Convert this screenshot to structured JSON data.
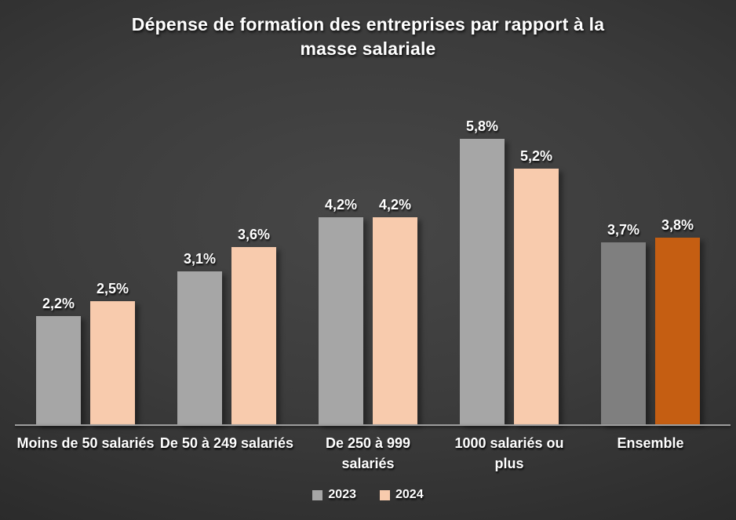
{
  "header": {
    "title_line1": "Dépense de formation des entreprises par rapport à la",
    "title_line2": "masse salariale"
  },
  "chart_data": {
    "type": "bar",
    "title": "Dépense de formation des entreprises par rapport à la masse salariale",
    "categories": [
      "Moins de 50 salariés",
      "De 50 à 249 salariés",
      "De 250 à 999 salariés",
      "1000 salariés ou plus",
      "Ensemble"
    ],
    "category_lines": [
      [
        "Moins de 50 salariés"
      ],
      [
        "De 50 à 249 salariés"
      ],
      [
        "De 250 à 999",
        "salariés"
      ],
      [
        "1000 salariés ou",
        "plus"
      ],
      [
        "Ensemble"
      ]
    ],
    "series": [
      {
        "name": "2023",
        "color": "#a6a6a6",
        "values": [
          2.2,
          3.1,
          4.2,
          5.8,
          3.7
        ],
        "labels": [
          "2,2%",
          "3,1%",
          "4,2%",
          "5,8%",
          "3,7%"
        ]
      },
      {
        "name": "2024",
        "color": "#f8cbad",
        "values": [
          2.5,
          3.6,
          4.2,
          5.2,
          3.8
        ],
        "labels": [
          "2,5%",
          "3,6%",
          "4,2%",
          "5,2%",
          "3,8%"
        ]
      }
    ],
    "highlight_category": "Ensemble",
    "highlight_colors": [
      "#7f7f7f",
      "#c55e12"
    ],
    "ylim": [
      0,
      6.5
    ],
    "grid": false,
    "axis_color": "#9d9d9d",
    "text_color": "#ffffff",
    "legend_position": "bottom",
    "data_labels": true
  }
}
